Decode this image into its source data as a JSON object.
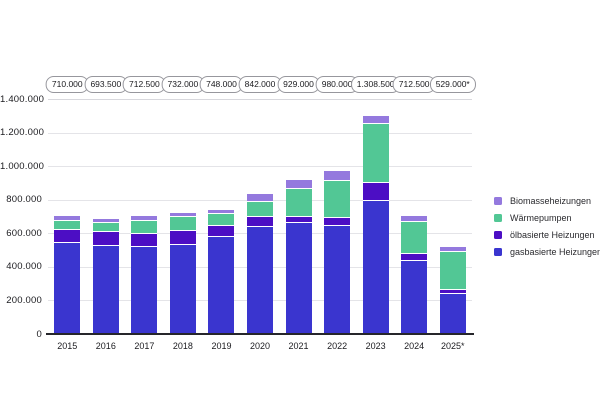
{
  "accent_colors": {
    "biomass": "#9479de",
    "heatpump": "#52c795",
    "oil": "#4c0ec4",
    "gas": "#3a35cf",
    "gridline": "#e4e4e8",
    "baseline": "#26262b"
  },
  "legend": {
    "items": [
      {
        "label": "Biomasseheizungen",
        "color": "#9479de"
      },
      {
        "label": "Wärmepumpen",
        "color": "#52c795"
      },
      {
        "label": "ölbasierte Heizungen",
        "color": "#4c0ec4"
      },
      {
        "label": "gasbasierte Heizungen",
        "color": "#3a35cf"
      }
    ]
  },
  "y_axis": {
    "tick_labels": [
      "1.400.000",
      "1.200.000",
      "1.000.000",
      "800.000",
      "600.000",
      "400.000",
      "200.000",
      "0"
    ],
    "max": 1400000,
    "step": 200000
  },
  "chart_data": {
    "type": "bar",
    "stacked": true,
    "title": "",
    "xlabel": "",
    "ylabel": "",
    "ylim": [
      0,
      1400000
    ],
    "grid": true,
    "legend_position": "right",
    "categories": [
      "2015",
      "2016",
      "2017",
      "2018",
      "2019",
      "2020",
      "2021",
      "2022",
      "2023",
      "2024",
      "2025*"
    ],
    "totals": [
      710000,
      693500,
      712500,
      732000,
      748000,
      842000,
      929000,
      980000,
      1308500,
      712500,
      529000
    ],
    "total_labels": [
      "710.000",
      "693.500",
      "712.500",
      "732.000",
      "748.000",
      "842.000",
      "929.000",
      "980.000",
      "1.308.500",
      "712.500",
      "529.000*"
    ],
    "series": [
      {
        "name": "gasbasierte Heizungen",
        "color": "#3a35cf",
        "values": [
          542000,
          521500,
          516500,
          532000,
          577000,
          637000,
          664000,
          644000,
          790500,
          432500,
          240000
        ]
      },
      {
        "name": "ölbasierte Heizungen",
        "color": "#4c0ec4",
        "values": [
          78000,
          90000,
          84000,
          82000,
          69000,
          62000,
          36000,
          51000,
          112500,
          46000,
          25000
        ]
      },
      {
        "name": "Wärmepumpen",
        "color": "#52c795",
        "values": [
          60000,
          56000,
          80000,
          88000,
          78000,
          95000,
          170000,
          224000,
          356000,
          193000,
          230000
        ]
      },
      {
        "name": "Biomasseheizungen",
        "color": "#9479de",
        "values": [
          30000,
          26000,
          32000,
          30000,
          24000,
          48000,
          59000,
          61000,
          49500,
          41000,
          34000
        ]
      }
    ]
  }
}
